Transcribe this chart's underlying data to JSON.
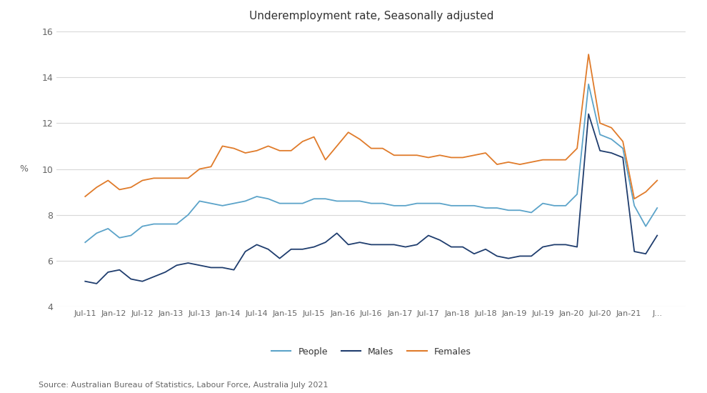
{
  "title": "Underemployment rate, Seasonally adjusted",
  "source": "Source: Australian Bureau of Statistics, Labour Force, Australia July 2021",
  "ylim": [
    4,
    16
  ],
  "yticks": [
    4,
    6,
    8,
    10,
    12,
    14,
    16
  ],
  "background_color": "#ffffff",
  "grid_color": "#d8d8d8",
  "people_color": "#5ba3c9",
  "males_color": "#1f3d6e",
  "females_color": "#e07b2a",
  "x_labels": [
    "Jul-11",
    "Jan-12",
    "Jul-12",
    "Jan-13",
    "Jul-13",
    "Jan-14",
    "Jul-14",
    "Jan-15",
    "Jul-15",
    "Jan-16",
    "Jul-16",
    "Jan-17",
    "Jul-17",
    "Jan-18",
    "Jul-18",
    "Jan-19",
    "Jul-19",
    "Jan-20",
    "Jul-20",
    "Jan-21",
    "J..."
  ],
  "people_data": [
    6.8,
    7.2,
    7.4,
    7.0,
    7.1,
    7.5,
    7.6,
    7.6,
    7.6,
    8.0,
    8.6,
    8.5,
    8.4,
    8.5,
    8.6,
    8.8,
    8.7,
    8.5,
    8.5,
    8.5,
    8.7,
    8.7,
    8.6,
    8.6,
    8.6,
    8.5,
    8.5,
    8.4,
    8.4,
    8.5,
    8.5,
    8.5,
    8.4,
    8.4,
    8.4,
    8.3,
    8.3,
    8.2,
    8.2,
    8.1,
    8.5,
    8.4,
    8.4,
    8.9,
    13.7,
    11.5,
    11.3,
    10.9,
    8.4,
    7.5,
    8.3
  ],
  "males_data": [
    5.1,
    5.0,
    5.5,
    5.6,
    5.2,
    5.1,
    5.3,
    5.5,
    5.8,
    5.9,
    5.8,
    5.7,
    5.7,
    5.6,
    6.4,
    6.7,
    6.5,
    6.1,
    6.5,
    6.5,
    6.6,
    6.8,
    7.2,
    6.7,
    6.8,
    6.7,
    6.7,
    6.7,
    6.6,
    6.7,
    7.1,
    6.9,
    6.6,
    6.6,
    6.3,
    6.5,
    6.2,
    6.1,
    6.2,
    6.2,
    6.6,
    6.7,
    6.7,
    6.6,
    12.4,
    10.8,
    10.7,
    10.5,
    6.4,
    6.3,
    7.1
  ],
  "females_data": [
    8.8,
    9.2,
    9.5,
    9.1,
    9.2,
    9.5,
    9.6,
    9.6,
    9.6,
    9.6,
    10.0,
    10.1,
    11.0,
    10.9,
    10.7,
    10.8,
    11.0,
    10.8,
    10.8,
    11.2,
    11.4,
    10.4,
    11.0,
    11.6,
    11.3,
    10.9,
    10.9,
    10.6,
    10.6,
    10.6,
    10.5,
    10.6,
    10.5,
    10.5,
    10.6,
    10.7,
    10.2,
    10.3,
    10.2,
    10.3,
    10.4,
    10.4,
    10.4,
    10.9,
    15.0,
    12.0,
    11.8,
    11.2,
    8.7,
    9.0,
    9.5
  ]
}
